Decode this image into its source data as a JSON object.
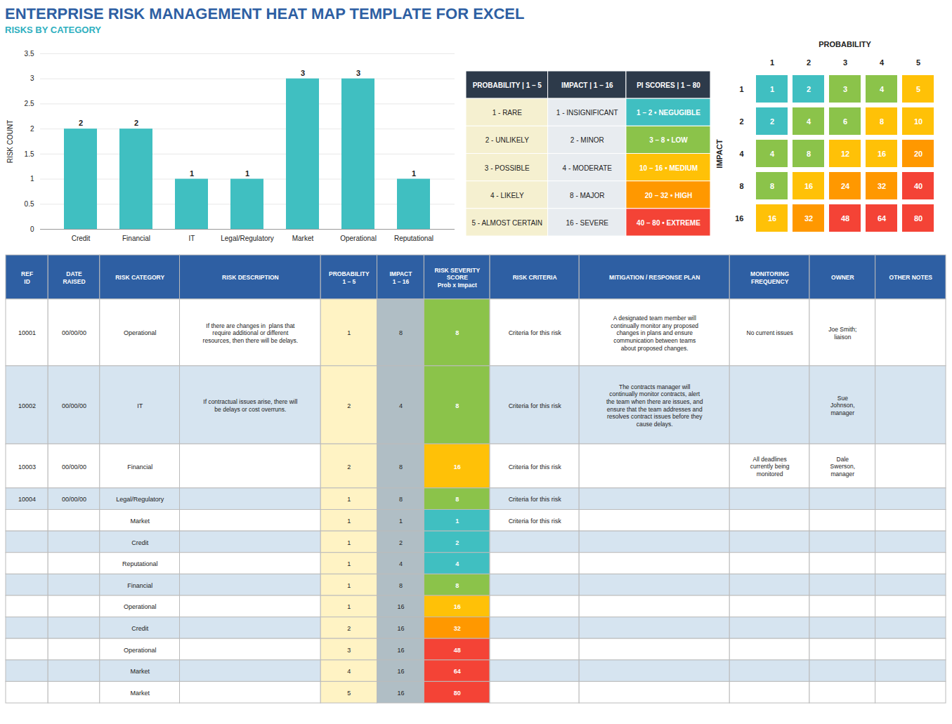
{
  "chart_data": [
    {
      "type": "bar",
      "title": "ENTERPRISE RISK MANAGEMENT HEAT MAP TEMPLATE FOR EXCEL",
      "subtitle": "RISKS BY CATEGORY",
      "categories": [
        "Credit",
        "Financial",
        "IT",
        "Legal/Regulatory",
        "Market",
        "Operational",
        "Reputational"
      ],
      "values": [
        2,
        2,
        1,
        1,
        3,
        3,
        1
      ],
      "color": "#40BFC1",
      "ylabel": "RISK COUNT",
      "ylim": [
        0,
        3.5
      ],
      "yticks": [
        0,
        0.5,
        1,
        1.5,
        2,
        2.5,
        3,
        3.5
      ],
      "grid": true,
      "data_labels": true
    },
    {
      "type": "table",
      "columns": [
        "PROBABILITY | 1 – 5",
        "IMPACT | 1 – 16",
        "PI SCORES | 1 – 80"
      ],
      "rows": [
        [
          "1 - RARE",
          "1 - INSIGNIFICANT",
          "1 – 2 • NEGUGIBLE"
        ],
        [
          "2 - UNLIKELY",
          "2 - MINOR",
          "3 – 8 • LOW"
        ],
        [
          "3 - POSSIBLE",
          "4 - MODERATE",
          "10 – 16 • MEDIUM"
        ],
        [
          "4 - LIKELY",
          "8 - MAJOR",
          "20 – 32 • HIGH"
        ],
        [
          "5 - ALMOST CERTAIN",
          "16 - SEVERE",
          "40 – 80 • EXTREME"
        ]
      ],
      "colors": [
        "#40BFC1",
        "#8BC34A",
        "#FFC107",
        "#FF9800",
        "#F44336"
      ]
    },
    {
      "type": "heatmap",
      "xlabel": "PROBABILITY",
      "ylabel": "IMPACT",
      "x": [
        "1",
        "2",
        "3",
        "4",
        "5"
      ],
      "y": [
        "1",
        "2",
        "4",
        "8",
        "16"
      ],
      "values": [
        [
          1,
          2,
          3,
          4,
          5
        ],
        [
          2,
          4,
          6,
          8,
          10
        ],
        [
          4,
          8,
          12,
          16,
          20
        ],
        [
          8,
          16,
          24,
          32,
          40
        ],
        [
          16,
          32,
          48,
          64,
          80
        ]
      ],
      "colors": [
        [
          "#40BFC1",
          "#40BFC1",
          "#8BC34A",
          "#8BC34A",
          "#FFC107"
        ],
        [
          "#40BFC1",
          "#8BC34A",
          "#8BC34A",
          "#FFC107",
          "#FFC107"
        ],
        [
          "#8BC34A",
          "#8BC34A",
          "#FFC107",
          "#FFC107",
          "#FF9800"
        ],
        [
          "#8BC34A",
          "#FFC107",
          "#FF9800",
          "#FF9800",
          "#F44336"
        ],
        [
          "#FFC107",
          "#FF9800",
          "#F44336",
          "#F44336",
          "#F44336"
        ]
      ],
      "data_labels": true
    },
    {
      "type": "table",
      "columns": [
        "REF\nID",
        "DATE\nRAISED",
        "RISK CATEGORY",
        "RISK DESCRIPTION",
        "PROBABILITY\n1 – 5",
        "IMPACT\n1 – 16",
        "RISK SEVERITY\nSCORE\nProb x Impact",
        "RISK CRITERIA",
        "MITIGATION / RESPONSE PLAN",
        "MONITORING\nFREQUENCY",
        "OWNER",
        "OTHER NOTES"
      ],
      "rows": [
        [
          "10001",
          "00/00/00",
          "Operational",
          "If there are changes in  plans that\nrequire additional or different\nresources, then there will be delays.",
          "1",
          "8",
          "8",
          "Criteria for this risk",
          "A designated team member will\ncontinually monitor any proposed\nchanges in plans and ensure\ncommunication between teams\nabout proposed changes.",
          "No current issues",
          "Joe Smith;\nliaison",
          null
        ],
        [
          "10002",
          "00/00/00",
          "IT",
          "If contractual issues arise, there will\nbe delays or cost overruns.",
          "2",
          "4",
          "8",
          "Criteria for this risk",
          "The contracts manager will\ncontinually monitor contracts, alert\nthe team when there are issues, and\nensure that the team addresses and\nresolves contract issues before they\ncause delays.",
          null,
          "Sue\nJohnson,\nmanager",
          null
        ],
        [
          "10003",
          "00/00/00",
          "Financial",
          null,
          "2",
          "8",
          "16",
          "Criteria for this risk",
          null,
          "All deadlines\ncurrently being\nmonitored",
          "Dale\nSwerson,\nmanager",
          null
        ],
        [
          "10004",
          "00/00/00",
          "Legal/Regulatory",
          null,
          "1",
          "8",
          "8",
          "Criteria for this risk",
          null,
          null,
          null,
          null
        ],
        [
          null,
          null,
          "Market",
          null,
          "1",
          "1",
          "1",
          "Criteria for this risk",
          null,
          null,
          null,
          null
        ],
        [
          null,
          null,
          "Credit",
          null,
          "1",
          "2",
          "2",
          null,
          null,
          null,
          null,
          null
        ],
        [
          null,
          null,
          "Reputational",
          null,
          "1",
          "4",
          "4",
          null,
          null,
          null,
          null,
          null
        ],
        [
          null,
          null,
          "Financial",
          null,
          "1",
          "8",
          "8",
          null,
          null,
          null,
          null,
          null
        ],
        [
          null,
          null,
          "Operational",
          null,
          "1",
          "16",
          "16",
          null,
          null,
          null,
          null,
          null
        ],
        [
          null,
          null,
          "Credit",
          null,
          "2",
          "16",
          "32",
          null,
          null,
          null,
          null,
          null
        ],
        [
          null,
          null,
          "Operational",
          null,
          "3",
          "16",
          "48",
          null,
          null,
          null,
          null,
          null
        ],
        [
          null,
          null,
          "Market",
          null,
          "4",
          "16",
          "64",
          null,
          null,
          null,
          null,
          null
        ],
        [
          null,
          null,
          "Market",
          null,
          "5",
          "16",
          "80",
          null,
          null,
          null,
          null,
          null
        ]
      ],
      "colors": [
        "#8BC34A",
        "#8BC34A",
        "#FFC107",
        "#8BC34A",
        "#40BFC1",
        "#40BFC1",
        "#40BFC1",
        "#8BC34A",
        "#FFC107",
        "#FF9800",
        "#F44336",
        "#F44336",
        "#F44336"
      ]
    }
  ]
}
